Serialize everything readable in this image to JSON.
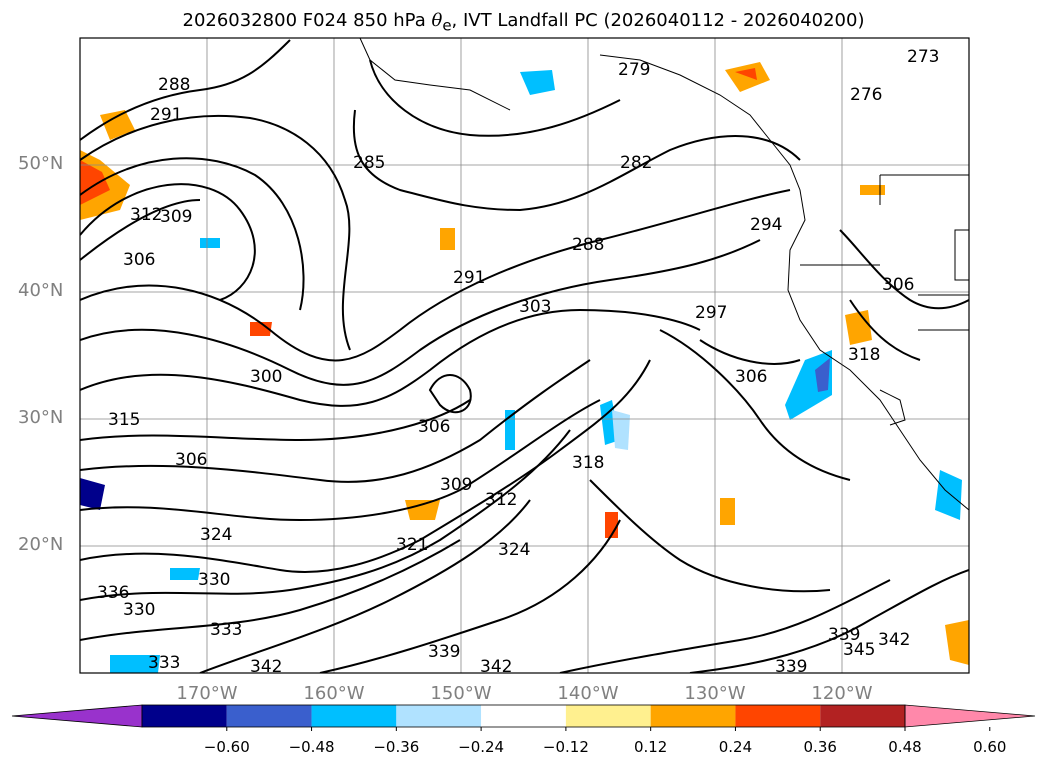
{
  "title": {
    "prefix": "2026032800 F024 850 hPa ",
    "theta": "θ",
    "sub": "e",
    "suffix": ", IVT Landfall PC (2026040112 - 2026040200)"
  },
  "map": {
    "region": "North Pacific",
    "lat_labels": [
      "50°N",
      "40°N",
      "30°N",
      "20°N"
    ],
    "lon_labels": [
      "170°W",
      "160°W",
      "150°W",
      "140°W",
      "130°W",
      "120°W"
    ],
    "contour_labels": [
      "288",
      "291",
      "285",
      "273",
      "276",
      "279",
      "282",
      "294",
      "288",
      "291",
      "297",
      "303",
      "306",
      "312",
      "309",
      "306",
      "300",
      "306",
      "315",
      "318",
      "306",
      "306",
      "309",
      "312",
      "318",
      "324",
      "321",
      "324",
      "336",
      "330",
      "330",
      "333",
      "333",
      "342",
      "339",
      "342",
      "339",
      "339",
      "342",
      "345"
    ]
  },
  "colorbar": {
    "ticks": [
      "−0.60",
      "−0.48",
      "−0.36",
      "−0.24",
      "−0.12",
      "0.12",
      "0.24",
      "0.36",
      "0.48",
      "0.60"
    ],
    "colors": [
      "#9932cc",
      "#00008b",
      "#3a5fcd",
      "#00bfff",
      "#b0e2ff",
      "#ffffff",
      "#fff08f",
      "#ffa500",
      "#ff4500",
      "#b22222",
      "#ff88aa"
    ]
  }
}
